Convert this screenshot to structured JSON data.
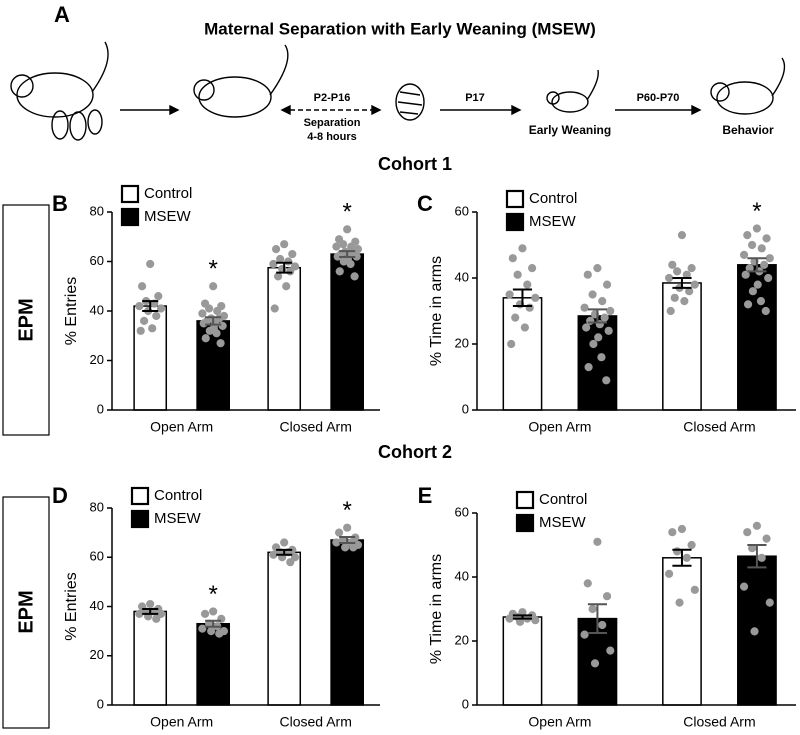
{
  "panel_a": {
    "letter": "A",
    "title": "Maternal Separation with Early Weaning (MSEW)",
    "arrow_labels": [
      "P2-P16",
      "P17",
      "P60-P70"
    ],
    "separation": [
      "Separation",
      "4-8 hours"
    ],
    "stage_labels": [
      "Early Weaning",
      "Behavior"
    ]
  },
  "cohorts": [
    "Cohort 1",
    "Cohort 2"
  ],
  "assay_labels": [
    "EPM",
    "EPM"
  ],
  "chart_data": [
    {
      "type": "bar",
      "panel": "B",
      "ylabel": "% Entries",
      "categories": [
        "Open Arm",
        "Closed Arm"
      ],
      "ylim": [
        0,
        80
      ],
      "yticks": [
        0,
        20,
        40,
        60,
        80
      ],
      "series": [
        {
          "name": "Control",
          "color": "#ffffff",
          "edge": "#000000",
          "point_color": "#999999",
          "values": [
            42,
            57.5
          ],
          "errors": [
            2,
            2
          ],
          "points": [
            [
              59,
              50,
              46,
              44,
              43,
              42,
              41,
              40,
              38,
              36,
              33,
              32
            ],
            [
              67,
              65,
              63,
              61,
              60,
              59,
              58,
              57,
              56,
              54,
              50,
              41
            ]
          ],
          "significance": [
            null,
            null
          ]
        },
        {
          "name": "MSEW",
          "color": "#000000",
          "edge": "#000000",
          "point_color": "#999999",
          "values": [
            36,
            63
          ],
          "errors": [
            1.5,
            1.2
          ],
          "points": [
            [
              50,
              43,
              42,
              41,
              40,
              39,
              38,
              37,
              37,
              36,
              35,
              35,
              34,
              33,
              32,
              31,
              29,
              27
            ],
            [
              73,
              69,
              68,
              67,
              66,
              66,
              65,
              64,
              64,
              63,
              63,
              62,
              62,
              61,
              60,
              59,
              56,
              54
            ]
          ],
          "significance": [
            "*",
            "*"
          ]
        }
      ]
    },
    {
      "type": "bar",
      "panel": "C",
      "ylabel": "% Time in arms",
      "categories": [
        "Open Arm",
        "Closed Arm"
      ],
      "ylim": [
        0,
        60
      ],
      "yticks": [
        0,
        20,
        40,
        60
      ],
      "series": [
        {
          "name": "Control",
          "color": "#ffffff",
          "edge": "#000000",
          "point_color": "#999999",
          "values": [
            34,
            38.5
          ],
          "errors": [
            2.5,
            1.5
          ],
          "points": [
            [
              49,
              46,
              43,
              41,
              38,
              35,
              34,
              32,
              31,
              28,
              25,
              20
            ],
            [
              53,
              44,
              43,
              42,
              41,
              40,
              38,
              37,
              36,
              34,
              33,
              30
            ]
          ],
          "significance": [
            null,
            null
          ]
        },
        {
          "name": "MSEW",
          "color": "#000000",
          "edge": "#000000",
          "point_color": "#999999",
          "values": [
            28.5,
            44
          ],
          "errors": [
            2,
            2
          ],
          "points": [
            [
              43,
              41,
              38,
              35,
              33,
              31,
              30,
              29,
              28,
              27,
              26,
              25,
              24,
              22,
              20,
              16,
              13,
              9
            ],
            [
              55,
              53,
              52,
              50,
              49,
              47,
              46,
              45,
              44,
              43,
              42,
              41,
              40,
              38,
              36,
              33,
              32,
              30
            ]
          ],
          "significance": [
            null,
            "*"
          ]
        }
      ]
    },
    {
      "type": "bar",
      "panel": "D",
      "ylabel": "% Entries",
      "categories": [
        "Open Arm",
        "Closed Arm"
      ],
      "ylim": [
        0,
        80
      ],
      "yticks": [
        0,
        20,
        40,
        60,
        80
      ],
      "series": [
        {
          "name": "Control",
          "color": "#ffffff",
          "edge": "#000000",
          "point_color": "#999999",
          "values": [
            38,
            62
          ],
          "errors": [
            1,
            1
          ],
          "points": [
            [
              41,
              40,
              39,
              38,
              38,
              37,
              37,
              36,
              35
            ],
            [
              66,
              64,
              63,
              62,
              62,
              61,
              60,
              60,
              58
            ]
          ],
          "significance": [
            null,
            null
          ]
        },
        {
          "name": "MSEW",
          "color": "#000000",
          "edge": "#000000",
          "point_color": "#999999",
          "values": [
            33,
            67
          ],
          "errors": [
            1.2,
            1.2
          ],
          "points": [
            [
              38,
              37,
              35,
              33,
              32,
              31,
              30,
              30,
              29
            ],
            [
              72,
              70,
              68,
              67,
              66,
              66,
              65,
              64,
              64
            ]
          ],
          "significance": [
            "*",
            "*"
          ]
        }
      ]
    },
    {
      "type": "bar",
      "panel": "E",
      "ylabel": "% Time in arms",
      "categories": [
        "Open Arm",
        "Closed Arm"
      ],
      "ylim": [
        0,
        60
      ],
      "yticks": [
        0,
        20,
        40,
        60
      ],
      "series": [
        {
          "name": "Control",
          "color": "#ffffff",
          "edge": "#000000",
          "point_color": "#999999",
          "values": [
            27.5,
            46
          ],
          "errors": [
            0.5,
            2.5
          ],
          "points": [
            [
              29,
              28.5,
              28,
              27.5,
              27,
              27,
              26.5,
              26
            ],
            [
              55,
              54,
              50,
              48,
              46,
              41,
              36,
              32
            ]
          ],
          "significance": [
            null,
            null
          ]
        },
        {
          "name": "MSEW",
          "color": "#000000",
          "edge": "#000000",
          "point_color": "#999999",
          "values": [
            27,
            46.5
          ],
          "errors": [
            4.5,
            3.5
          ],
          "points": [
            [
              51,
              38,
              34,
              30,
              25,
              22,
              17,
              13
            ],
            [
              56,
              54,
              52,
              49,
              46,
              37,
              32,
              23
            ]
          ],
          "significance": [
            null,
            null
          ]
        }
      ]
    }
  ]
}
